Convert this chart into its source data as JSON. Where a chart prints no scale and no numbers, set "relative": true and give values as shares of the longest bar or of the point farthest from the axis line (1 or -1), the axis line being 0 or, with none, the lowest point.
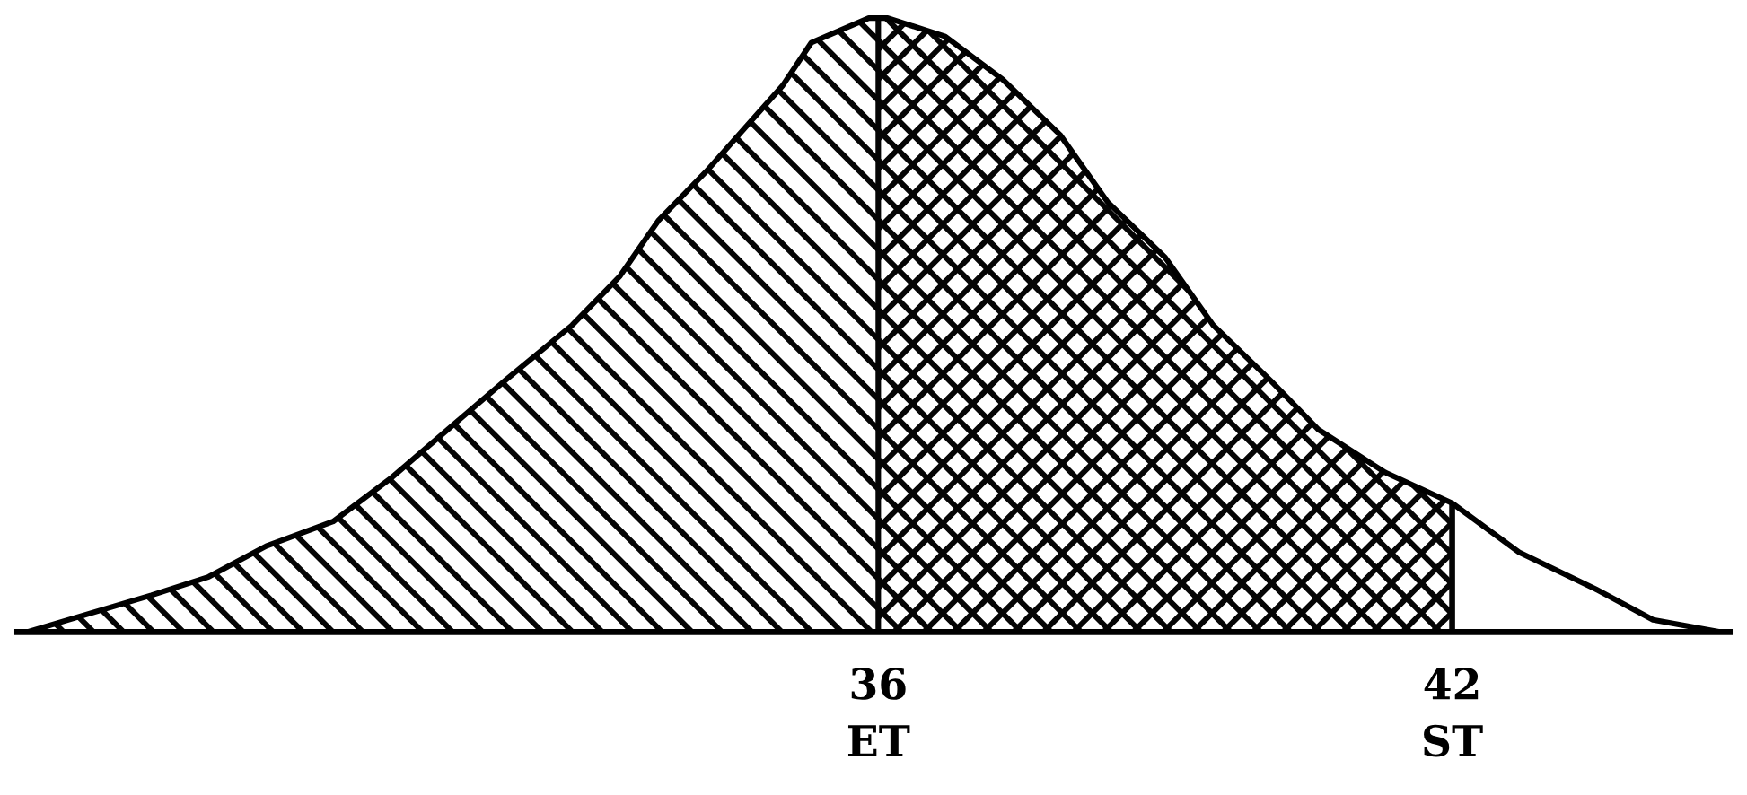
{
  "chart_data": {
    "type": "area",
    "relative": true,
    "x": [
      27.1,
      28.4,
      29.0,
      29.6,
      30.3,
      30.9,
      31.5,
      32.1,
      32.8,
      33.3,
      33.7,
      34.2,
      34.6,
      35.0,
      35.3,
      35.9,
      36.1,
      36.7,
      37.3,
      37.9,
      38.4,
      39.0,
      39.5,
      40.1,
      40.6,
      41.3,
      42.0,
      42.7,
      43.5,
      44.1,
      44.8
    ],
    "values": [
      0,
      0.06,
      0.09,
      0.14,
      0.18,
      0.25,
      0.33,
      0.41,
      0.5,
      0.58,
      0.67,
      0.75,
      0.82,
      0.89,
      0.96,
      1,
      1,
      0.97,
      0.9,
      0.81,
      0.7,
      0.61,
      0.5,
      0.41,
      0.33,
      0.26,
      0.21,
      0.13,
      0.07,
      0.02,
      0
    ],
    "color": "#000000",
    "xlim": [
      27.0,
      44.9
    ],
    "xticks": [
      {
        "value": 36,
        "label": "36\nET"
      },
      {
        "value": 42,
        "label": "42\nST"
      }
    ],
    "bands": [
      {
        "axis": "x",
        "from": 27.1,
        "to": 42
      },
      {
        "axis": "x",
        "from": 36,
        "to": 42
      }
    ],
    "grid": false,
    "legend": false
  }
}
